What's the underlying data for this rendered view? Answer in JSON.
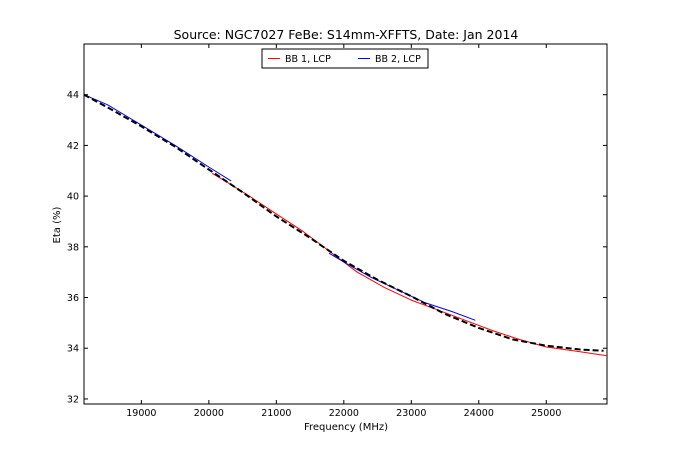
{
  "chart_data": {
    "type": "line",
    "title": "Source: NGC7027 FeBe: S14mm-XFFTS, Date: Jan 2014",
    "xlabel": "Frequency (MHz)",
    "ylabel": "Eta (%)",
    "xlim": [
      18150,
      25900
    ],
    "ylim": [
      31.8,
      46.0
    ],
    "xticks": [
      19000,
      20000,
      21000,
      22000,
      23000,
      24000,
      25000
    ],
    "yticks": [
      32,
      34,
      36,
      38,
      40,
      42,
      44
    ],
    "grid": false,
    "legend_position": "top-center",
    "legend": [
      "BB 1, LCP",
      "BB 2, LCP"
    ],
    "series": [
      {
        "name": "BB 1, LCP",
        "color": "#ff0000",
        "style": "solid",
        "x": [
          20050,
          20300,
          20600,
          21000,
          21400,
          21800,
          22200,
          22600,
          23000,
          23400,
          23800,
          24200,
          24600,
          25000,
          25400,
          25900
        ],
        "y": [
          40.9,
          40.5,
          40.0,
          39.3,
          38.6,
          37.8,
          37.0,
          36.4,
          35.9,
          35.5,
          35.1,
          34.7,
          34.35,
          34.05,
          33.9,
          33.7
        ]
      },
      {
        "name": "BB 2, LCP",
        "color": "#0000ff",
        "style": "solid",
        "segments": [
          {
            "x": [
              18150,
              18500,
              19000,
              19500,
              20000,
              20330
            ],
            "y": [
              44.0,
              43.6,
              42.8,
              42.0,
              41.15,
              40.6
            ]
          },
          {
            "x": [
              21780,
              22000,
              22400,
              22800,
              23200,
              23600,
              23950
            ],
            "y": [
              37.75,
              37.4,
              36.8,
              36.3,
              35.8,
              35.45,
              35.1
            ]
          }
        ]
      },
      {
        "name": "",
        "color": "#000000",
        "style": "dashed",
        "x": [
          18150,
          18500,
          19000,
          19500,
          20000,
          20500,
          21000,
          21500,
          22000,
          22500,
          23000,
          23500,
          24000,
          24500,
          25000,
          25500,
          25850
        ],
        "y": [
          44.0,
          43.5,
          42.75,
          41.95,
          41.05,
          40.15,
          39.2,
          38.35,
          37.45,
          36.7,
          36.05,
          35.35,
          34.8,
          34.35,
          34.1,
          33.95,
          33.9
        ]
      }
    ]
  }
}
